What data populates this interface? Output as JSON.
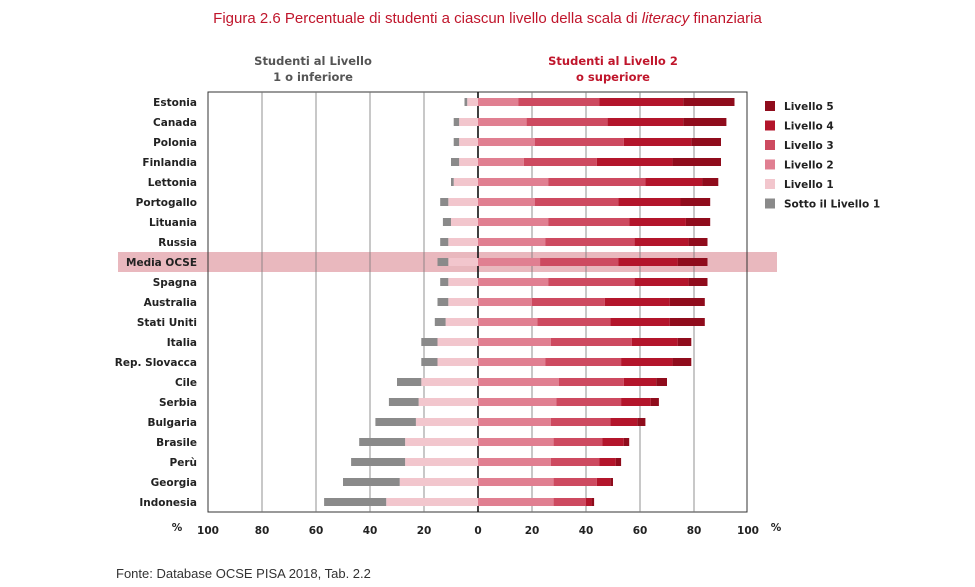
{
  "figure": {
    "title_main": "Figura 2.6 Percentuale di studenti a ciascun livello della scala di ",
    "title_italic": "literacy",
    "title_end": " finanziaria",
    "source": "Fonte: Database OCSE PISA 2018, Tab. 2.2"
  },
  "chart_data": {
    "type": "bar",
    "orientation": "horizontal-diverging",
    "header_left_line1": "Studenti al Livello",
    "header_left_line2": "1 o inferiore",
    "header_right_line1": "Studenti al Livello 2",
    "header_right_line2": "o superiore",
    "x_tick_labels": [
      "100",
      "80",
      "60",
      "40",
      "20",
      "0",
      "20",
      "40",
      "60",
      "80",
      "100"
    ],
    "x_unit_left": "%",
    "x_unit_right": "%",
    "xlim": [
      -100,
      100
    ],
    "highlighted_category": "Media OCSE",
    "legend_placement": "right",
    "series": [
      {
        "name": "Livello 5",
        "color": "#8f0c1c"
      },
      {
        "name": "Livello  4",
        "color": "#b3152b"
      },
      {
        "name": "Livello 3",
        "color": "#cd4a60"
      },
      {
        "name": "Livello 2",
        "color": "#e07f91"
      },
      {
        "name": "Livello 1",
        "color": "#f2c6cd"
      },
      {
        "name": "Sotto il Livello 1",
        "color": "#8a8a8a"
      }
    ],
    "categories": [
      "Estonia",
      "Canada",
      "Polonia",
      "Finlandia",
      "Lettonia",
      "Portogallo",
      "Lituania",
      "Russia",
      "Media OCSE",
      "Spagna",
      "Australia",
      "Stati Uniti",
      "Italia",
      "Rep. Slovacca",
      "Cile",
      "Serbia",
      "Bulgaria",
      "Brasile",
      "Perù",
      "Georgia",
      "Indonesia"
    ],
    "rows": [
      {
        "below1": 1,
        "l1": 4,
        "l2": 15,
        "l3": 30,
        "l4": 31,
        "l5": 19
      },
      {
        "below1": 2,
        "l1": 7,
        "l2": 18,
        "l3": 30,
        "l4": 28,
        "l5": 16
      },
      {
        "below1": 2,
        "l1": 7,
        "l2": 21,
        "l3": 33,
        "l4": 25,
        "l5": 11
      },
      {
        "below1": 3,
        "l1": 7,
        "l2": 17,
        "l3": 27,
        "l4": 28,
        "l5": 18
      },
      {
        "below1": 1,
        "l1": 9,
        "l2": 26,
        "l3": 36,
        "l4": 21,
        "l5": 6
      },
      {
        "below1": 3,
        "l1": 11,
        "l2": 21,
        "l3": 31,
        "l4": 23,
        "l5": 11
      },
      {
        "below1": 3,
        "l1": 10,
        "l2": 26,
        "l3": 30,
        "l4": 21,
        "l5": 9
      },
      {
        "below1": 3,
        "l1": 11,
        "l2": 25,
        "l3": 33,
        "l4": 20,
        "l5": 7
      },
      {
        "below1": 4,
        "l1": 11,
        "l2": 23,
        "l3": 29,
        "l4": 22,
        "l5": 11
      },
      {
        "below1": 3,
        "l1": 11,
        "l2": 26,
        "l3": 32,
        "l4": 20,
        "l5": 7
      },
      {
        "below1": 4,
        "l1": 11,
        "l2": 20,
        "l3": 27,
        "l4": 24,
        "l5": 13
      },
      {
        "below1": 4,
        "l1": 12,
        "l2": 22,
        "l3": 27,
        "l4": 22,
        "l5": 13
      },
      {
        "below1": 6,
        "l1": 15,
        "l2": 27,
        "l3": 30,
        "l4": 17,
        "l5": 5
      },
      {
        "below1": 6,
        "l1": 15,
        "l2": 25,
        "l3": 28,
        "l4": 19,
        "l5": 7
      },
      {
        "below1": 9,
        "l1": 21,
        "l2": 30,
        "l3": 24,
        "l4": 12,
        "l5": 4
      },
      {
        "below1": 11,
        "l1": 22,
        "l2": 29,
        "l3": 24,
        "l4": 11,
        "l5": 3
      },
      {
        "below1": 15,
        "l1": 23,
        "l2": 27,
        "l3": 22,
        "l4": 10,
        "l5": 3
      },
      {
        "below1": 17,
        "l1": 27,
        "l2": 28,
        "l3": 18,
        "l4": 8,
        "l5": 2
      },
      {
        "below1": 20,
        "l1": 27,
        "l2": 27,
        "l3": 18,
        "l4": 6,
        "l5": 2
      },
      {
        "below1": 21,
        "l1": 29,
        "l2": 28,
        "l3": 16,
        "l4": 5,
        "l5": 1
      },
      {
        "below1": 23,
        "l1": 34,
        "l2": 28,
        "l3": 12,
        "l4": 2,
        "l5": 1
      }
    ]
  }
}
